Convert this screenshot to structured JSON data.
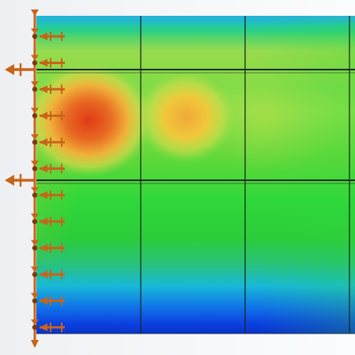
{
  "viewport": {
    "background_color": "#f4f5f7"
  },
  "contour_plot": {
    "result_type": "stress contour",
    "colors": {
      "low": "#0b3fe0",
      "low_mid": "#12b8e8",
      "mid": "#2fd83a",
      "mid_high": "#8ee04a",
      "high": "#f0c83a",
      "max": "#e24a18"
    },
    "panel_grid": {
      "columns": 4,
      "rows": 3,
      "line_color": "#1d2a1d"
    },
    "hotspots": [
      {
        "level": "max",
        "label": "hotspot-primary"
      },
      {
        "level": "high",
        "label": "hotspot-secondary"
      }
    ]
  },
  "boundary_conditions": {
    "support_color": "#c8641a",
    "support_type": "fixed-edge restraints",
    "restraint_count": 12,
    "load_arrow_count": 2
  }
}
